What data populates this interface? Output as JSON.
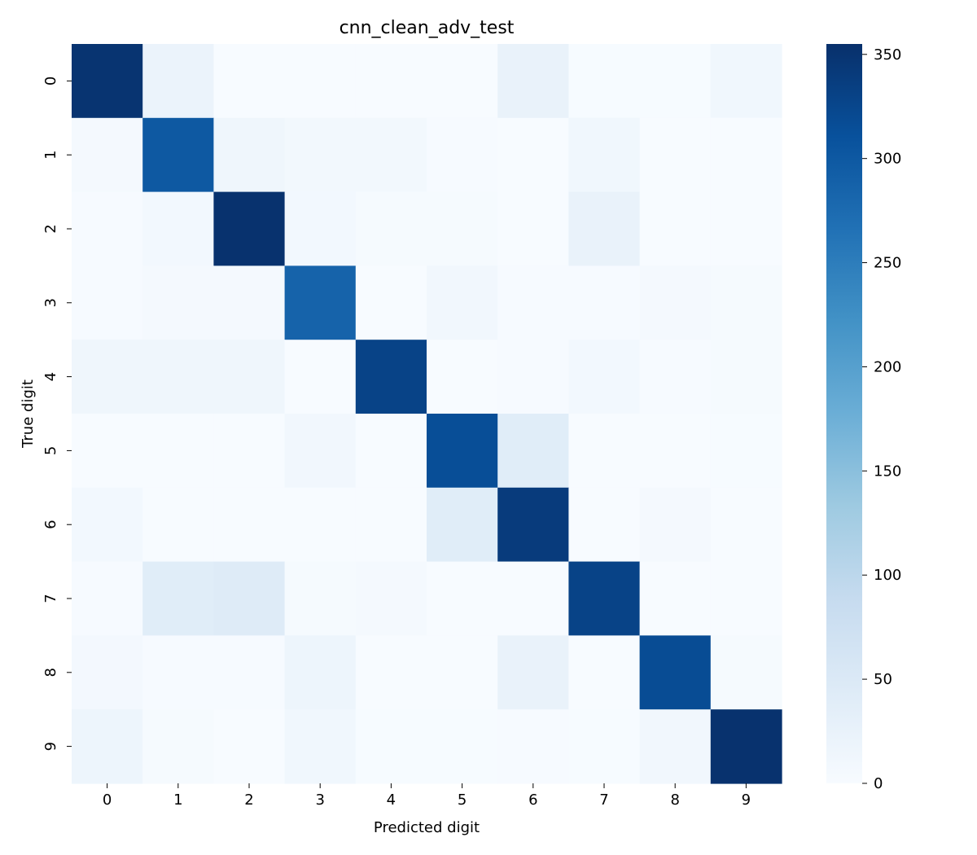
{
  "chart_data": {
    "type": "heatmap",
    "title": "cnn_clean_adv_test",
    "xlabel": "Predicted digit",
    "ylabel": "True digit",
    "x_categories": [
      "0",
      "1",
      "2",
      "3",
      "4",
      "5",
      "6",
      "7",
      "8",
      "9"
    ],
    "y_categories": [
      "0",
      "1",
      "2",
      "3",
      "4",
      "5",
      "6",
      "7",
      "8",
      "9"
    ],
    "values": [
      [
        350,
        22,
        0,
        0,
        0,
        0,
        25,
        1,
        1,
        12
      ],
      [
        6,
        300,
        14,
        9,
        9,
        2,
        0,
        12,
        0,
        0
      ],
      [
        2,
        8,
        352,
        8,
        4,
        4,
        0,
        25,
        0,
        0
      ],
      [
        2,
        5,
        5,
        285,
        0,
        10,
        2,
        2,
        5,
        3
      ],
      [
        14,
        14,
        14,
        0,
        330,
        0,
        2,
        8,
        2,
        4
      ],
      [
        0,
        0,
        0,
        10,
        0,
        315,
        40,
        0,
        0,
        1
      ],
      [
        8,
        0,
        0,
        0,
        0,
        40,
        340,
        0,
        5,
        0
      ],
      [
        2,
        40,
        45,
        4,
        5,
        0,
        0,
        330,
        0,
        0
      ],
      [
        7,
        2,
        2,
        17,
        0,
        0,
        25,
        0,
        318,
        3
      ],
      [
        17,
        4,
        0,
        12,
        1,
        1,
        2,
        1,
        10,
        352
      ]
    ],
    "colorbar": {
      "min": 0,
      "max": 355,
      "ticks": [
        0,
        50,
        100,
        150,
        200,
        250,
        300,
        350
      ],
      "colormap": "Blues",
      "colors": [
        "#f7fbff",
        "#deebf7",
        "#c6dbef",
        "#9ecae1",
        "#6baed6",
        "#4292c6",
        "#2171b5",
        "#08519c",
        "#08306b"
      ]
    },
    "grid": false
  }
}
